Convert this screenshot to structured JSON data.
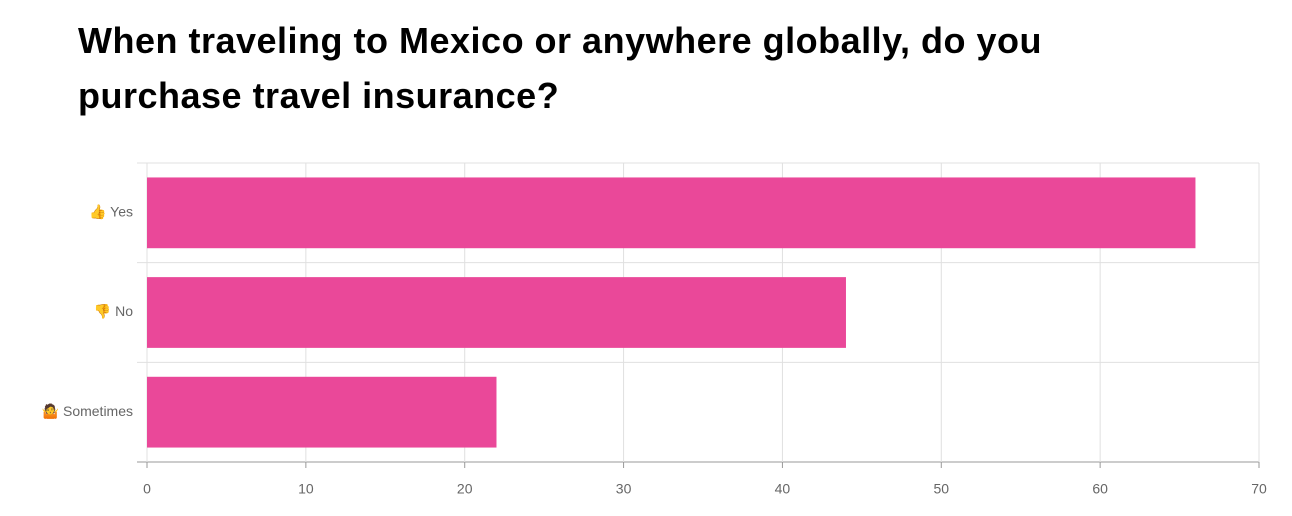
{
  "chart_data": {
    "type": "bar",
    "orientation": "horizontal",
    "title": "When traveling to Mexico or anywhere globally, do you purchase travel insurance?",
    "categories": [
      "👍 Yes",
      "👎 No",
      "🤷 Sometimes"
    ],
    "values": [
      66,
      44,
      22
    ],
    "color": "#ea4899",
    "xlim": [
      0,
      70
    ],
    "xticks": [
      0,
      10,
      20,
      30,
      40,
      50,
      60,
      70
    ],
    "grid": true
  }
}
